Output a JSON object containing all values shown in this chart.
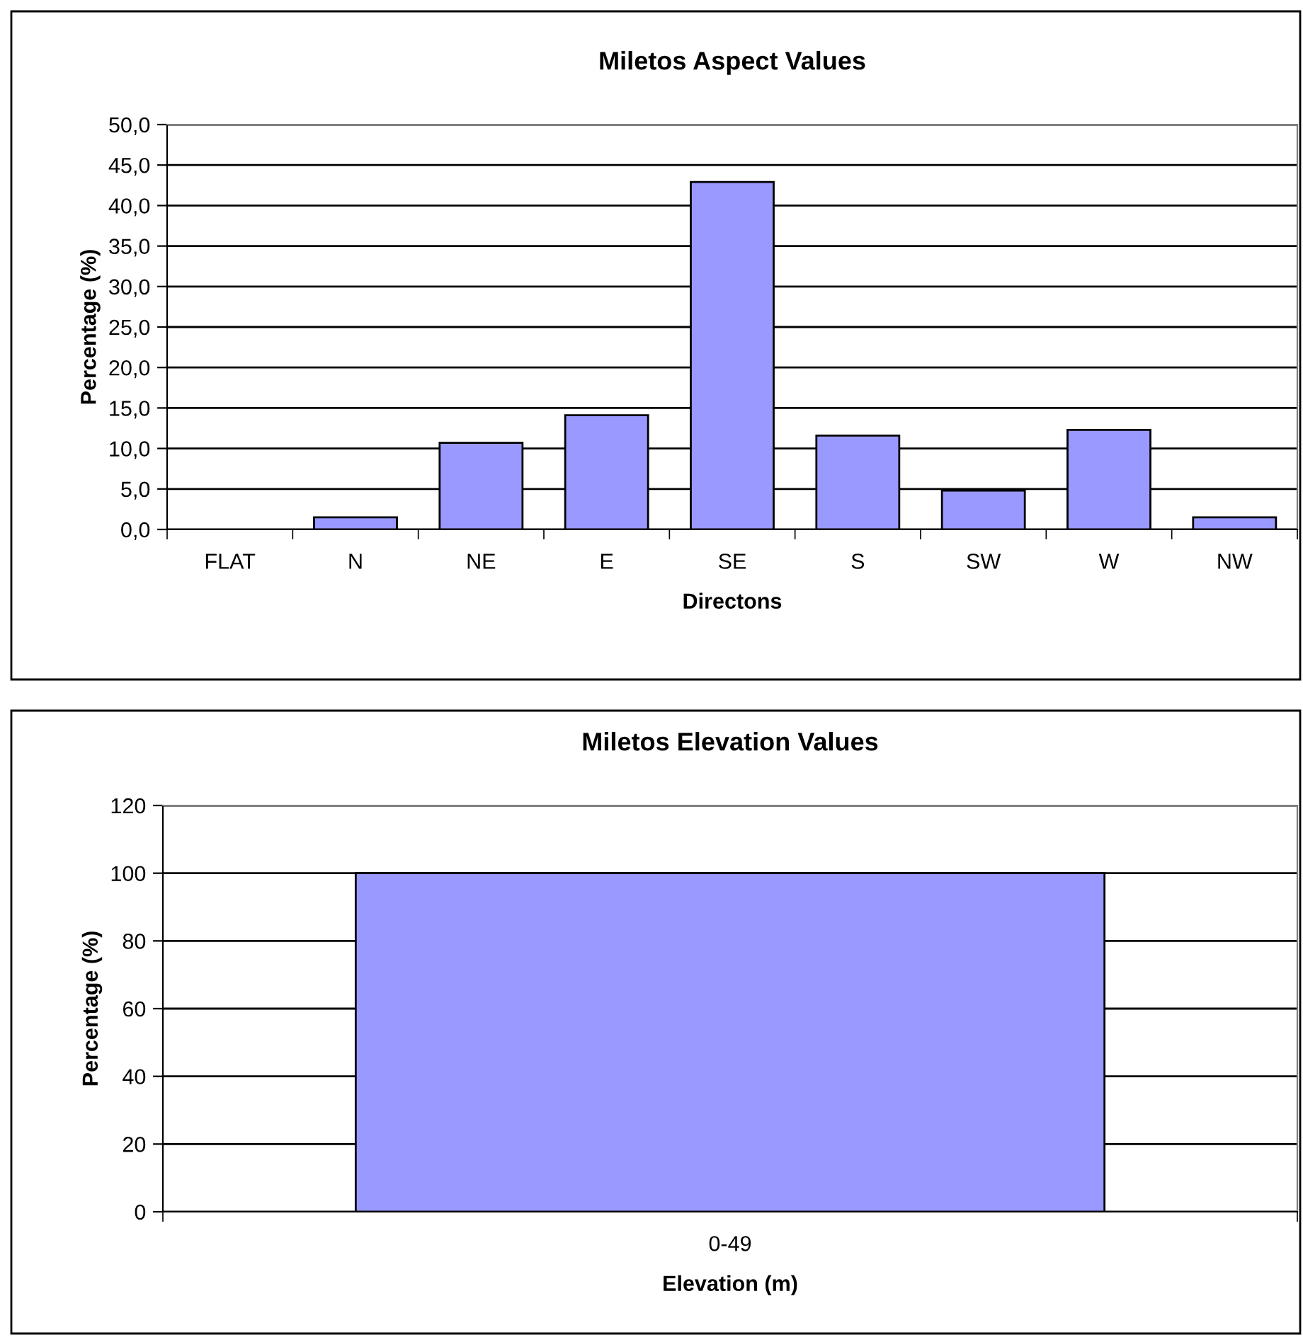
{
  "chart_data": [
    {
      "type": "bar",
      "title": "Miletos Aspect Values",
      "xlabel": "Directons",
      "ylabel": "Percentage (%)",
      "categories": [
        "FLAT",
        "N",
        "NE",
        "E",
        "SE",
        "S",
        "SW",
        "W",
        "NW"
      ],
      "series": [
        {
          "color": "#9999ff",
          "values": [
            0,
            1.5,
            10.7,
            14.1,
            42.9,
            11.6,
            4.8,
            12.3,
            1.5
          ]
        }
      ],
      "ylim": [
        0,
        50
      ],
      "yticks": [
        {
          "value": 0,
          "label": "0,0"
        },
        {
          "value": 5,
          "label": "5,0"
        },
        {
          "value": 10,
          "label": "10,0"
        },
        {
          "value": 15,
          "label": "15,0"
        },
        {
          "value": 20,
          "label": "20,0"
        },
        {
          "value": 25,
          "label": "25,0"
        },
        {
          "value": 30,
          "label": "30,0"
        },
        {
          "value": 35,
          "label": "35,0"
        },
        {
          "value": 40,
          "label": "40,0"
        },
        {
          "value": 45,
          "label": "45,0"
        },
        {
          "value": 50,
          "label": "50,0"
        }
      ],
      "grid": "y",
      "legend": false
    },
    {
      "type": "bar",
      "title": "Miletos Elevation Values",
      "xlabel": "Elevation (m)",
      "ylabel": "Percentage (%)",
      "categories": [
        "0-49"
      ],
      "series": [
        {
          "color": "#9999ff",
          "values": [
            100
          ]
        }
      ],
      "ylim": [
        0,
        120
      ],
      "yticks": [
        0,
        20,
        40,
        60,
        80,
        100,
        120
      ],
      "grid": "y",
      "legend": false
    }
  ]
}
